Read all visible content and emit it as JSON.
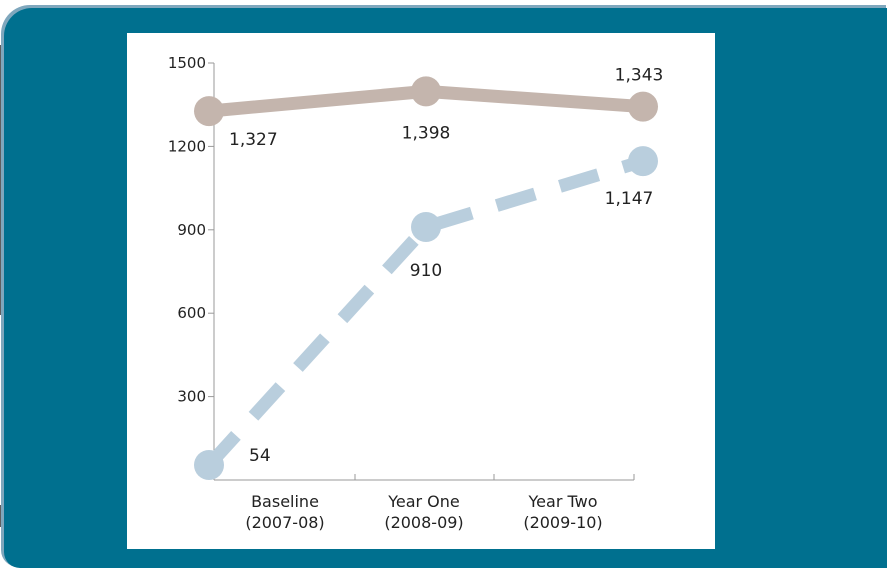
{
  "chart_data": {
    "type": "line",
    "categories": [
      [
        "Baseline",
        "(2007-08)"
      ],
      [
        "Year One",
        "(2008-09)"
      ],
      [
        "Year Two",
        "(2009-10)"
      ]
    ],
    "ylim": [
      0,
      1500
    ],
    "yticks": [
      300,
      600,
      900,
      1200,
      1500
    ],
    "grid": false,
    "legend": "none",
    "series": [
      {
        "values": [
          1327,
          1398,
          1343
        ],
        "labels": [
          "1,327",
          "1,398",
          "1,343"
        ],
        "color": "#c4b5ad",
        "style": "solid"
      },
      {
        "values": [
          54,
          910,
          1147
        ],
        "labels": [
          "54",
          "910",
          "1,147"
        ],
        "color": "#b9cedd",
        "style": "dashed"
      }
    ]
  },
  "colors": {
    "panel": "#00708f",
    "card": "#ffffff"
  }
}
